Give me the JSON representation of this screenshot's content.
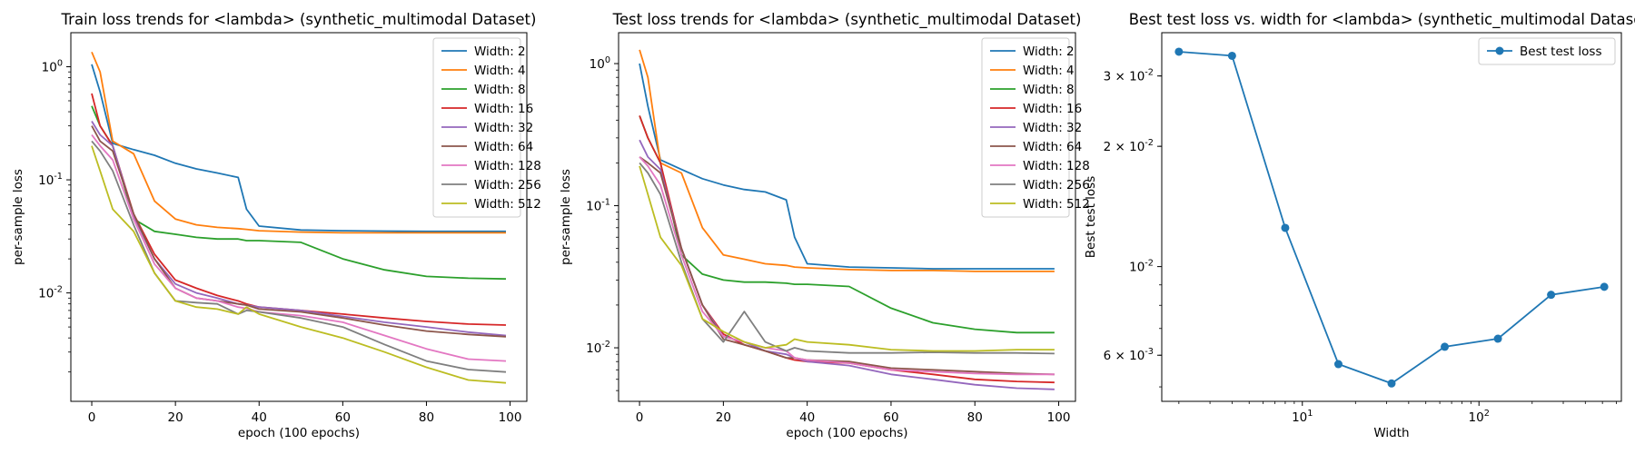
{
  "chart_data": [
    {
      "type": "line",
      "title": "Train loss trends for <lambda> (synthetic_multimodal Dataset)",
      "xlabel": "epoch (100 epochs)",
      "ylabel": "per-sample loss",
      "yscale": "log",
      "xlim": [
        -5,
        104
      ],
      "ylim": [
        0.0011,
        2.0
      ],
      "xticks": [
        0,
        20,
        40,
        60,
        80,
        100
      ],
      "xtick_labels": [
        "0",
        "20",
        "40",
        "60",
        "80",
        "100"
      ],
      "yticks": [
        1,
        0.1,
        0.01
      ],
      "ytick_labels": [
        "10^0",
        "10^-1",
        "10^-2"
      ],
      "legend": "upper right",
      "x": [
        0,
        2,
        5,
        10,
        15,
        20,
        25,
        30,
        35,
        37,
        40,
        50,
        60,
        70,
        80,
        90,
        99
      ],
      "series": [
        {
          "name": "Width: 2",
          "color": "#1f77b4",
          "values": [
            1.05,
            0.6,
            0.21,
            0.185,
            0.165,
            0.14,
            0.125,
            0.115,
            0.105,
            0.055,
            0.039,
            0.036,
            0.0355,
            0.0352,
            0.035,
            0.035,
            0.035
          ]
        },
        {
          "name": "Width: 4",
          "color": "#ff7f0e",
          "values": [
            1.35,
            0.9,
            0.22,
            0.17,
            0.065,
            0.045,
            0.04,
            0.038,
            0.037,
            0.0365,
            0.0355,
            0.0345,
            0.034,
            0.034,
            0.034,
            0.034,
            0.034
          ]
        },
        {
          "name": "Width: 8",
          "color": "#2ca02c",
          "values": [
            0.45,
            0.3,
            0.2,
            0.045,
            0.035,
            0.033,
            0.031,
            0.03,
            0.03,
            0.029,
            0.029,
            0.028,
            0.02,
            0.016,
            0.014,
            0.0135,
            0.0133
          ]
        },
        {
          "name": "Width: 16",
          "color": "#d62728",
          "values": [
            0.58,
            0.3,
            0.2,
            0.05,
            0.022,
            0.013,
            0.011,
            0.0095,
            0.0085,
            0.008,
            0.0075,
            0.007,
            0.0065,
            0.006,
            0.0056,
            0.0053,
            0.0052
          ]
        },
        {
          "name": "Width: 32",
          "color": "#9467bd",
          "values": [
            0.33,
            0.25,
            0.2,
            0.048,
            0.02,
            0.012,
            0.01,
            0.009,
            0.008,
            0.0078,
            0.0075,
            0.007,
            0.0062,
            0.0055,
            0.005,
            0.0045,
            0.0042
          ]
        },
        {
          "name": "Width: 64",
          "color": "#8c564b",
          "values": [
            0.3,
            0.22,
            0.18,
            0.05,
            0.02,
            0.011,
            0.009,
            0.0085,
            0.008,
            0.0078,
            0.0072,
            0.0068,
            0.006,
            0.0052,
            0.0046,
            0.0043,
            0.0041
          ]
        },
        {
          "name": "Width: 128",
          "color": "#e377c2",
          "values": [
            0.25,
            0.2,
            0.15,
            0.045,
            0.018,
            0.011,
            0.009,
            0.0085,
            0.0075,
            0.0073,
            0.0068,
            0.0063,
            0.0055,
            0.0042,
            0.0032,
            0.0026,
            0.0025
          ]
        },
        {
          "name": "Width: 256",
          "color": "#7f7f7f",
          "values": [
            0.22,
            0.18,
            0.12,
            0.04,
            0.015,
            0.0085,
            0.0082,
            0.008,
            0.0065,
            0.007,
            0.0068,
            0.006,
            0.005,
            0.0035,
            0.0025,
            0.0021,
            0.002
          ]
        },
        {
          "name": "Width: 512",
          "color": "#bcbd22",
          "values": [
            0.2,
            0.12,
            0.055,
            0.035,
            0.015,
            0.0085,
            0.0075,
            0.0072,
            0.0065,
            0.0075,
            0.0065,
            0.005,
            0.004,
            0.003,
            0.0022,
            0.0017,
            0.0016
          ]
        }
      ]
    },
    {
      "type": "line",
      "title": "Test loss trends for <lambda> (synthetic_multimodal Dataset)",
      "xlabel": "epoch (100 epochs)",
      "ylabel": "per-sample loss",
      "yscale": "log",
      "xlim": [
        -5,
        104
      ],
      "ylim": [
        0.0042,
        1.65
      ],
      "xticks": [
        0,
        20,
        40,
        60,
        80,
        100
      ],
      "xtick_labels": [
        "0",
        "20",
        "40",
        "60",
        "80",
        "100"
      ],
      "yticks": [
        1,
        0.1,
        0.01
      ],
      "ytick_labels": [
        "10^0",
        "10^-1",
        "10^-2"
      ],
      "legend": "upper right",
      "x": [
        0,
        2,
        5,
        10,
        15,
        20,
        25,
        30,
        35,
        37,
        40,
        50,
        60,
        70,
        80,
        90,
        99
      ],
      "series": [
        {
          "name": "Width: 2",
          "color": "#1f77b4",
          "values": [
            1.0,
            0.5,
            0.21,
            0.18,
            0.155,
            0.14,
            0.13,
            0.125,
            0.11,
            0.06,
            0.039,
            0.037,
            0.0365,
            0.036,
            0.036,
            0.036,
            0.036
          ]
        },
        {
          "name": "Width: 4",
          "color": "#ff7f0e",
          "values": [
            1.25,
            0.8,
            0.2,
            0.17,
            0.07,
            0.045,
            0.042,
            0.039,
            0.038,
            0.037,
            0.0365,
            0.0355,
            0.035,
            0.035,
            0.0345,
            0.0345,
            0.0345
          ]
        },
        {
          "name": "Width: 8",
          "color": "#2ca02c",
          "values": [
            0.43,
            0.3,
            0.2,
            0.045,
            0.033,
            0.03,
            0.029,
            0.029,
            0.0285,
            0.028,
            0.028,
            0.027,
            0.019,
            0.015,
            0.0135,
            0.0128,
            0.0128
          ]
        },
        {
          "name": "Width: 16",
          "color": "#d62728",
          "values": [
            0.43,
            0.3,
            0.2,
            0.05,
            0.02,
            0.0125,
            0.0105,
            0.0095,
            0.0085,
            0.0082,
            0.008,
            0.0078,
            0.007,
            0.0065,
            0.006,
            0.0058,
            0.0057
          ]
        },
        {
          "name": "Width: 32",
          "color": "#9467bd",
          "values": [
            0.29,
            0.22,
            0.18,
            0.05,
            0.02,
            0.012,
            0.011,
            0.0095,
            0.009,
            0.0085,
            0.008,
            0.0075,
            0.0065,
            0.006,
            0.0055,
            0.0052,
            0.0051
          ]
        },
        {
          "name": "Width: 64",
          "color": "#8c564b",
          "values": [
            0.22,
            0.2,
            0.17,
            0.05,
            0.02,
            0.0115,
            0.0105,
            0.0095,
            0.0085,
            0.0085,
            0.0082,
            0.008,
            0.0072,
            0.007,
            0.0068,
            0.0066,
            0.0065
          ]
        },
        {
          "name": "Width: 128",
          "color": "#e377c2",
          "values": [
            0.22,
            0.19,
            0.14,
            0.045,
            0.018,
            0.012,
            0.011,
            0.01,
            0.0095,
            0.0085,
            0.0082,
            0.0078,
            0.007,
            0.0068,
            0.0066,
            0.0065,
            0.0065
          ]
        },
        {
          "name": "Width: 256",
          "color": "#7f7f7f",
          "values": [
            0.2,
            0.17,
            0.12,
            0.04,
            0.016,
            0.011,
            0.018,
            0.011,
            0.0095,
            0.01,
            0.0095,
            0.0092,
            0.0092,
            0.0093,
            0.0092,
            0.0092,
            0.0091
          ]
        },
        {
          "name": "Width: 512",
          "color": "#bcbd22",
          "values": [
            0.19,
            0.12,
            0.06,
            0.038,
            0.016,
            0.013,
            0.011,
            0.01,
            0.0105,
            0.0115,
            0.011,
            0.0105,
            0.0097,
            0.0095,
            0.0095,
            0.0097,
            0.0097
          ]
        }
      ]
    },
    {
      "type": "line",
      "title": "Best test loss vs. width for <lambda> (synthetic_multimodal Dataset)",
      "xlabel": "Width",
      "ylabel": "Best test loss",
      "xscale": "log",
      "yscale": "log",
      "xlim": [
        1.6,
        640
      ],
      "ylim": [
        0.0046,
        0.0385
      ],
      "xticks": [
        10,
        100
      ],
      "xtick_labels": [
        "10^1",
        "10^2"
      ],
      "yticks": [
        0.03,
        0.02,
        0.01,
        0.006
      ],
      "ytick_labels": [
        "3 × 10^-2",
        "2 × 10^-2",
        "10^-2",
        "6 × 10^-3"
      ],
      "legend": "upper right",
      "series": [
        {
          "name": "Best test loss",
          "color": "#1f77b4",
          "marker": "o",
          "x": [
            2,
            4,
            8,
            16,
            32,
            64,
            128,
            256,
            512
          ],
          "values": [
            0.0345,
            0.0337,
            0.0125,
            0.0057,
            0.0051,
            0.0063,
            0.0066,
            0.0085,
            0.0089
          ]
        }
      ]
    }
  ]
}
